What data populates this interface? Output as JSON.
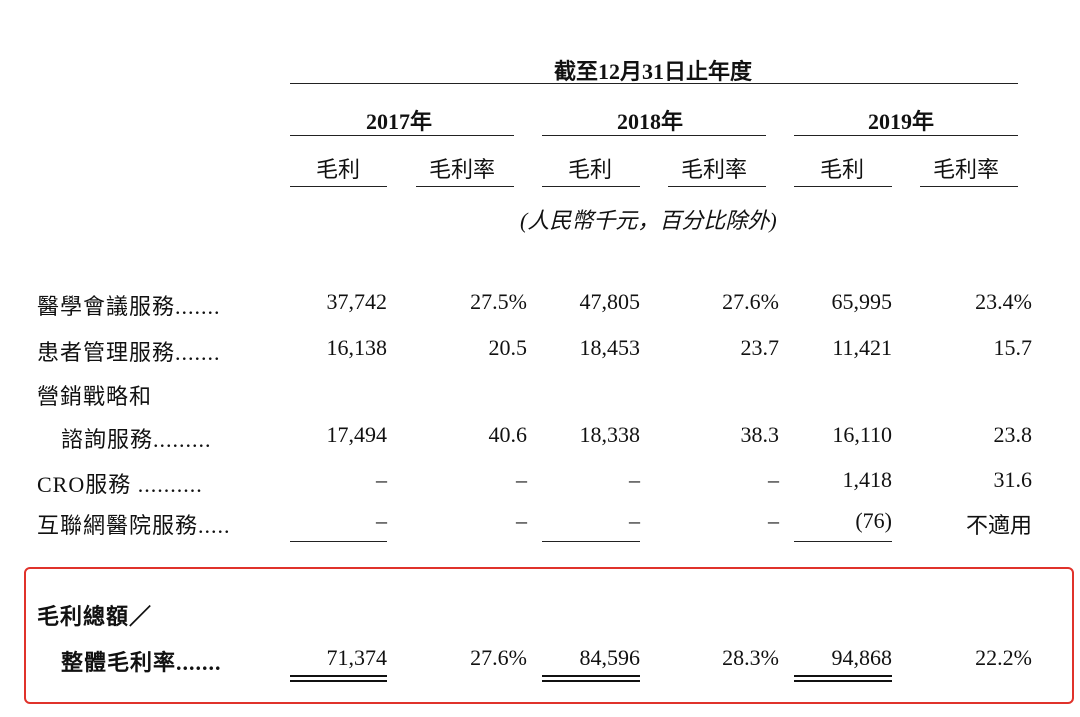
{
  "header": {
    "period_title": "截至12月31日止年度",
    "years": [
      "2017年",
      "2018年",
      "2019年"
    ],
    "col_gross_profit": "毛利",
    "col_margin": "毛利率",
    "unit_note": "(人民幣千元，百分比除外)"
  },
  "rows": [
    {
      "label": "醫學會議服務.......",
      "cells": [
        "37,742",
        "27.5%",
        "47,805",
        "27.6%",
        "65,995",
        "23.4%"
      ]
    },
    {
      "label": "患者管理服務.......",
      "cells": [
        "16,138",
        "20.5",
        "18,453",
        "23.7",
        "11,421",
        "15.7"
      ]
    },
    {
      "label": "營銷戰略和",
      "label2": "諮詢服務.........",
      "cells": [
        "17,494",
        "40.6",
        "18,338",
        "38.3",
        "16,110",
        "23.8"
      ]
    },
    {
      "label": "CRO服務 ..........",
      "cells": [
        "–",
        "–",
        "–",
        "–",
        "1,418",
        "31.6"
      ]
    },
    {
      "label": "互聯網醫院服務.....",
      "cells": [
        "–",
        "–",
        "–",
        "–",
        "(76)",
        "不適用"
      ]
    }
  ],
  "total": {
    "label": "毛利總額／",
    "label2": "整體毛利率.......",
    "cells": [
      "71,374",
      "27.6%",
      "84,596",
      "28.3%",
      "94,868",
      "22.2%"
    ]
  },
  "colors": {
    "highlight_box": "#e0322b"
  }
}
